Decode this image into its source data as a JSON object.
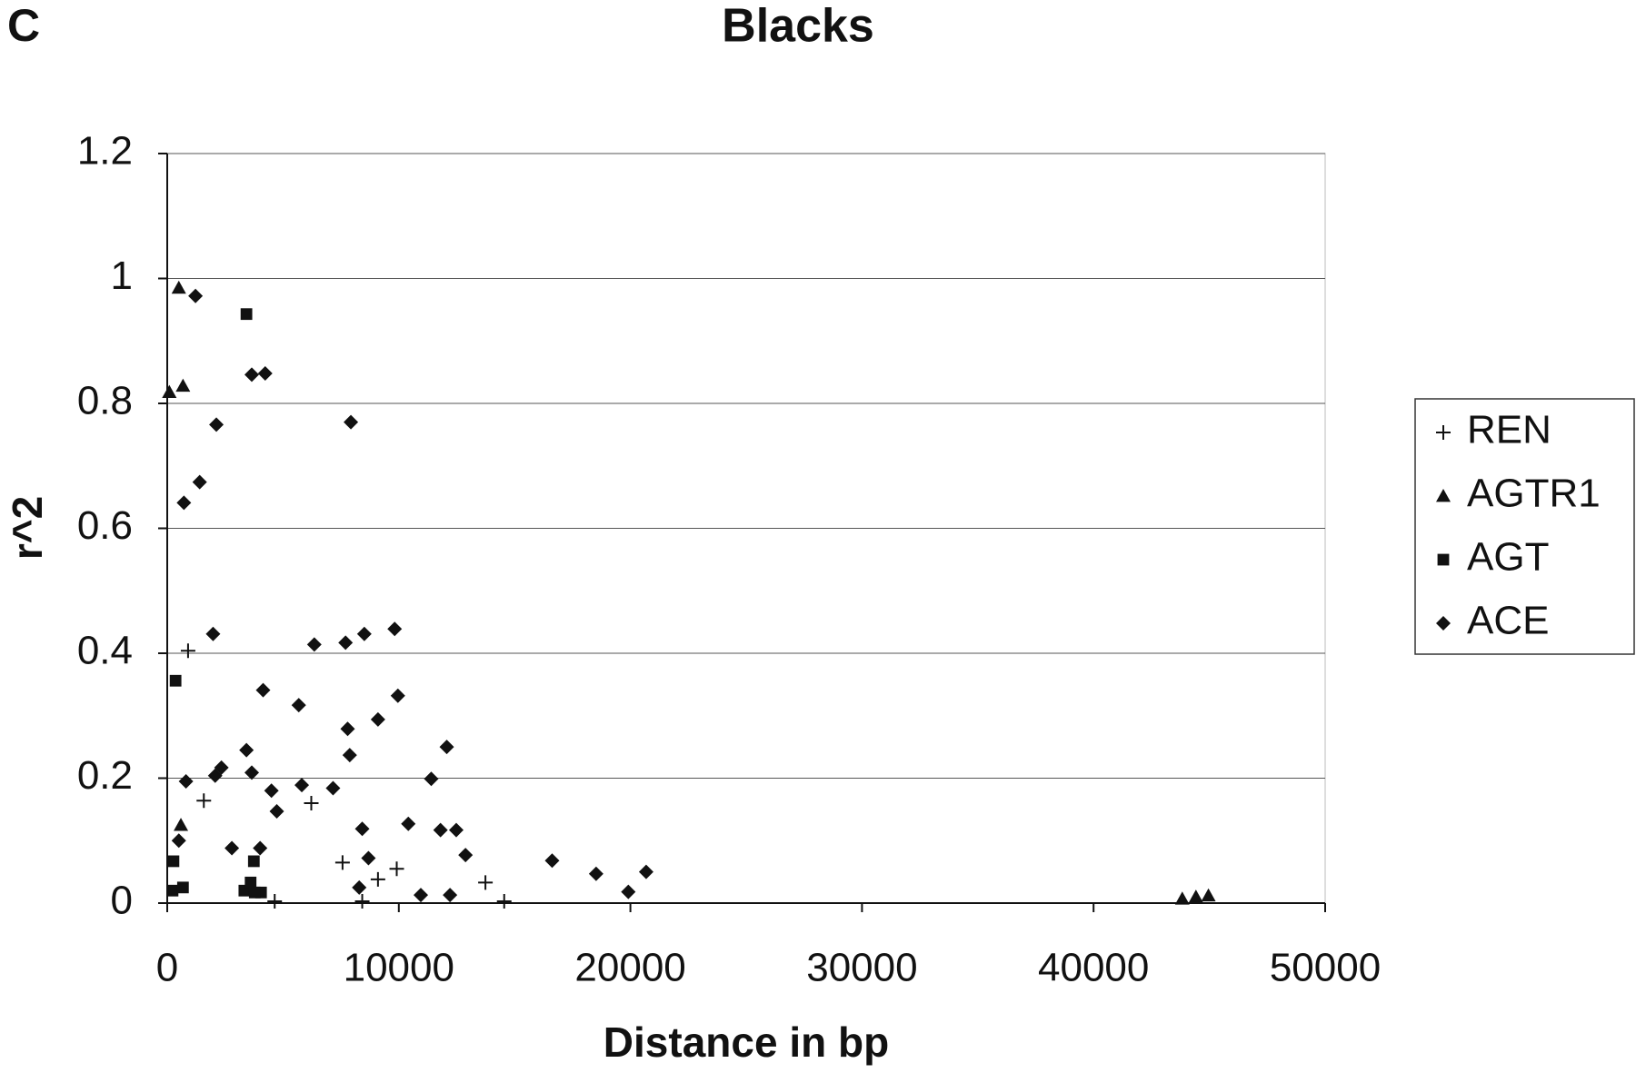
{
  "chart_data": {
    "type": "scatter",
    "panel_label": "C",
    "title": "Blacks",
    "x_label": "Distance in bp",
    "y_label": "r^2",
    "xlim": [
      0,
      50000
    ],
    "ylim": [
      0,
      1.2
    ],
    "xticks": [
      0,
      10000,
      20000,
      30000,
      40000,
      50000
    ],
    "yticks": [
      0,
      0.2,
      0.4,
      0.6,
      0.8,
      1,
      1.2
    ],
    "grid": true,
    "legend": "right",
    "series": [
      {
        "name": "REN",
        "color": "#111111",
        "marker": "plus",
        "x": [
          900,
          1580,
          6220,
          7570,
          9100,
          9910,
          13740,
          14550,
          4640,
          8420
        ],
        "values": [
          0.404,
          0.164,
          0.16,
          0.065,
          0.038,
          0.055,
          0.033,
          0.003,
          0.003,
          0.003
        ]
      },
      {
        "name": "AGTR1",
        "color": "#111111",
        "marker": "triangle",
        "x": [
          500,
          90,
          680,
          590,
          43830,
          44420,
          44960
        ],
        "values": [
          0.985,
          0.818,
          0.828,
          0.125,
          0.007,
          0.01,
          0.012
        ]
      },
      {
        "name": "AGT",
        "color": "#111111",
        "marker": "square",
        "x": [
          3420,
          360,
          270,
          230,
          680,
          3740,
          3330,
          3600,
          4050,
          3780
        ],
        "values": [
          0.943,
          0.356,
          0.067,
          0.02,
          0.025,
          0.067,
          0.02,
          0.033,
          0.017,
          0.017
        ]
      },
      {
        "name": "ACE",
        "color": "#111111",
        "marker": "diamond",
        "x": [
          1220,
          3650,
          4230,
          2120,
          7930,
          1400,
          720,
          1980,
          6350,
          7700,
          8510,
          9820,
          4140,
          9960,
          5680,
          7790,
          9100,
          3420,
          7880,
          12070,
          810,
          2070,
          2340,
          3650,
          4500,
          5810,
          7160,
          11400,
          4730,
          2790,
          4010,
          500,
          8420,
          10410,
          11800,
          12480,
          12880,
          8690,
          16620,
          18520,
          20680,
          19910,
          10950,
          12210,
          8290
        ],
        "values": [
          0.972,
          0.846,
          0.848,
          0.766,
          0.77,
          0.674,
          0.641,
          0.431,
          0.414,
          0.417,
          0.431,
          0.439,
          0.341,
          0.332,
          0.317,
          0.279,
          0.294,
          0.245,
          0.237,
          0.25,
          0.195,
          0.204,
          0.217,
          0.209,
          0.18,
          0.189,
          0.184,
          0.199,
          0.147,
          0.088,
          0.088,
          0.1,
          0.119,
          0.127,
          0.117,
          0.117,
          0.077,
          0.072,
          0.068,
          0.047,
          0.05,
          0.018,
          0.013,
          0.013,
          0.025
        ]
      }
    ]
  }
}
